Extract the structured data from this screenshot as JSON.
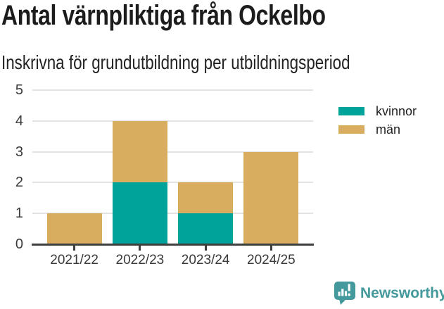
{
  "header": {
    "title": "Antal värnpliktiga från Ockelbo",
    "subtitle": "Inskrivna för grundutbildning per utbildningsperiod"
  },
  "chart_data": {
    "type": "bar",
    "stacked": true,
    "title": "Antal värnpliktiga från Ockelbo",
    "subtitle": "Inskrivna för grundutbildning per utbildningsperiod",
    "categories": [
      "2021/22",
      "2022/23",
      "2023/24",
      "2024/25"
    ],
    "series": [
      {
        "name": "kvinnor",
        "color": "#00a399",
        "values": [
          0,
          2,
          1,
          0
        ]
      },
      {
        "name": "män",
        "color": "#d9ad5f",
        "values": [
          1,
          2,
          1,
          3
        ]
      }
    ],
    "totals": [
      1,
      4,
      2,
      3
    ],
    "xlabel": "",
    "ylabel": "",
    "ylim": [
      0,
      5
    ],
    "yticks": [
      0,
      1,
      2,
      3,
      4,
      5
    ],
    "grid": true,
    "legend_position": "top-right"
  },
  "footer": {
    "brand": "Newsworthy",
    "logo_icon": "bar-chart-speech-bubble-icon"
  },
  "colors": {
    "kvinnor": "#00a399",
    "man": "#d9ad5f",
    "gridline": "#e3e3e3",
    "axis": "#3e3f3f",
    "tick_text": "#3a3a3a",
    "title_text": "#1c1c1c",
    "brand_teal": "#43999b"
  }
}
